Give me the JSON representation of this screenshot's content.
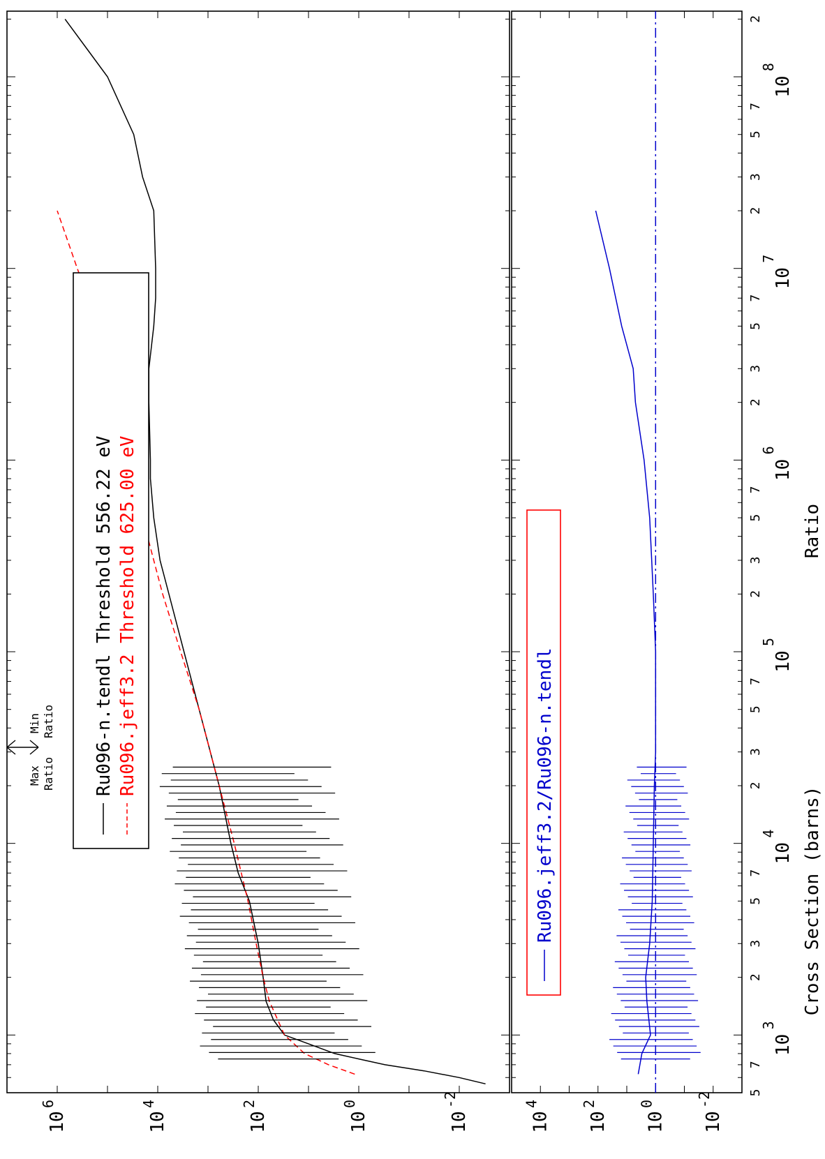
{
  "colors": {
    "axis": "#000000",
    "tendl": "#000000",
    "jeff": "#ff0000",
    "ratio": "#0000cc",
    "ratio_legend_border": "#ff0000"
  },
  "energy_axis": {
    "decades": [
      {
        "mant": "10",
        "exp": "3",
        "value": 1000
      },
      {
        "mant": "10",
        "exp": "4",
        "value": 10000
      },
      {
        "mant": "10",
        "exp": "5",
        "value": 100000
      },
      {
        "mant": "10",
        "exp": "6",
        "value": 1000000
      },
      {
        "mant": "10",
        "exp": "7",
        "value": 10000000
      },
      {
        "mant": "10",
        "exp": "8",
        "value": 100000000
      }
    ],
    "minor_labels": [
      {
        "text": "5",
        "value": 500
      },
      {
        "text": "7",
        "value": 700
      },
      {
        "text": "2",
        "value": 2000
      },
      {
        "text": "3",
        "value": 3000
      },
      {
        "text": "5",
        "value": 5000
      },
      {
        "text": "7",
        "value": 7000
      },
      {
        "text": "2",
        "value": 20000
      },
      {
        "text": "3",
        "value": 30000
      },
      {
        "text": "5",
        "value": 50000
      },
      {
        "text": "7",
        "value": 70000
      },
      {
        "text": "2",
        "value": 200000
      },
      {
        "text": "3",
        "value": 300000
      },
      {
        "text": "5",
        "value": 500000
      },
      {
        "text": "7",
        "value": 700000
      },
      {
        "text": "2",
        "value": 2000000
      },
      {
        "text": "3",
        "value": 3000000
      },
      {
        "text": "5",
        "value": 5000000
      },
      {
        "text": "7",
        "value": 7000000
      },
      {
        "text": "2",
        "value": 20000000
      },
      {
        "text": "3",
        "value": 30000000
      },
      {
        "text": "5",
        "value": 50000000
      },
      {
        "text": "7",
        "value": 70000000
      },
      {
        "text": "2",
        "value": 200000000
      }
    ],
    "range": [
      500,
      220000000
    ]
  },
  "top_panel": {
    "ylabel": "Cross Section (barns)",
    "ticks": [
      {
        "mant": "10",
        "exp": "-2",
        "value": 0.01
      },
      {
        "mant": "10",
        "exp": "0",
        "value": 1
      },
      {
        "mant": "10",
        "exp": "2",
        "value": 100
      },
      {
        "mant": "10",
        "exp": "4",
        "value": 10000
      },
      {
        "mant": "10",
        "exp": "6",
        "value": 1000000
      }
    ],
    "range": [
      0.001,
      10000000
    ],
    "legend": [
      {
        "label": "Ru096-n.tendl Threshold 556.22 eV",
        "style": "solid",
        "color_key": "tendl"
      },
      {
        "label": "Ru096.jeff3.2 Threshold 625.00 eV",
        "style": "dashed",
        "color_key": "jeff"
      }
    ]
  },
  "bottom_panel": {
    "ylabel": "Ratio",
    "ticks": [
      {
        "mant": "10",
        "exp": "-2",
        "value": 0.01
      },
      {
        "mant": "10",
        "exp": "0",
        "value": 1
      },
      {
        "mant": "10",
        "exp": "2",
        "value": 100
      },
      {
        "mant": "10",
        "exp": "4",
        "value": 10000
      }
    ],
    "range": [
      0.001,
      100000
    ],
    "legend": [
      {
        "label": "Ru096.jeff3.2/Ru096-n.tendl",
        "style": "solid",
        "color_key": "ratio"
      }
    ]
  },
  "ratio_marker": {
    "max_label": "Max\nRatio",
    "min_label": "Min\nRatio"
  },
  "chart_data": {
    "type": "line",
    "xscale": "log",
    "yscale": "log",
    "panels": [
      {
        "name": "cross_section",
        "xlabel": "",
        "ylabel": "Cross Section (barns)",
        "xlim": [
          500,
          220000000
        ],
        "ylim": [
          0.001,
          10000000
        ],
        "series": [
          {
            "name": "Ru096-n.tendl Threshold 556.22 eV",
            "style": "solid",
            "x": [
              556,
              600,
              650,
              700,
              750,
              800,
              900,
              1000,
              1200,
              1500,
              2000,
              3000,
              5000,
              7000,
              10000,
              20000,
              30000,
              50000,
              100000,
              200000,
              300000,
              500000,
              800000,
              1000000,
              2000000,
              3000000,
              5000000,
              7000000,
              10000000,
              20000000,
              30000000,
              50000000,
              100000000,
              200000000
            ],
            "y": [
              0.003,
              0.01,
              0.05,
              0.3,
              1.0,
              3.0,
              10,
              30,
              50,
              70,
              80,
              100,
              150,
              250,
              350,
              600,
              900,
              1500,
              3000,
              6000,
              9000,
              12000,
              14000,
              14000,
              15000,
              15000,
              12000,
              11000,
              11000,
              12000,
              20000,
              30000,
              100000,
              700000
            ],
            "resonances": "dense resonance structure between ~700 eV and ~25 keV"
          },
          {
            "name": "Ru096.jeff3.2 Threshold 625.00 eV",
            "style": "dashed",
            "x": [
              625,
              700,
              800,
              1000,
              1500,
              2000,
              3000,
              5000,
              10000,
              20000,
              50000,
              100000,
              200000,
              300000,
              500000,
              1000000,
              2000000,
              3000000,
              5000000,
              10000000,
              20000000
            ],
            "y": [
              1.2,
              4,
              12,
              30,
              60,
              80,
              110,
              160,
              300,
              600,
              1500,
              3500,
              8000,
              12000,
              20000,
              35000,
              60000,
              80000,
              150000,
              400000,
              1000000
            ]
          }
        ]
      },
      {
        "name": "ratio",
        "xlabel": "",
        "ylabel": "Ratio",
        "xlim": [
          500,
          220000000
        ],
        "ylim": [
          0.001,
          100000
        ],
        "series": [
          {
            "name": "Ru096.jeff3.2/Ru096-n.tendl",
            "style": "solid",
            "x": [
              625,
              700,
              800,
              1000,
              1500,
              2000,
              3000,
              5000,
              10000,
              20000,
              30000,
              50000,
              100000,
              200000,
              500000,
              1000000,
              2000000,
              3000000,
              5000000,
              10000000,
              20000000
            ],
            "y": [
              4,
              3.5,
              3.0,
              1.5,
              2.0,
              2.2,
              1.6,
              1.3,
              1.2,
              1.1,
              1.0,
              1.0,
              1.0,
              1.2,
              1.6,
              2.5,
              5,
              6,
              15,
              40,
              120
            ],
            "resonances": "dense ratio spikes between ~700 eV and ~25 keV"
          },
          {
            "name": "",
            "style": "dash-dot",
            "x": [
              500,
              220000000
            ],
            "y": [
              1,
              1
            ]
          }
        ]
      }
    ]
  }
}
